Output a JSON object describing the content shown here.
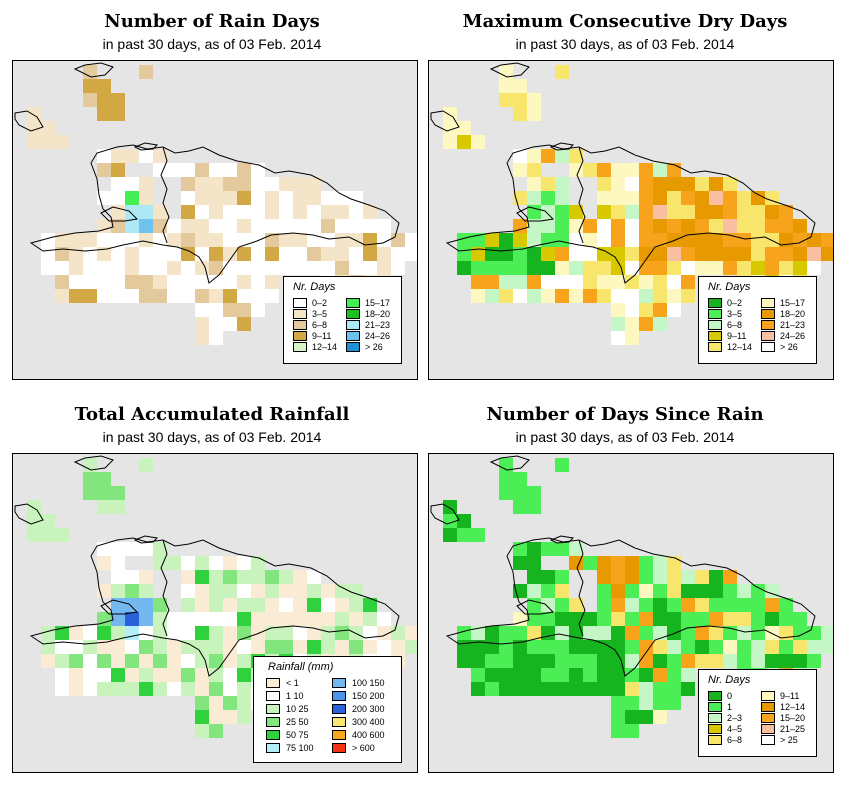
{
  "panels": [
    {
      "title": "Number of Rain Days",
      "subtitle": "in past 30 days, as of  03 Feb. 2014",
      "legend": {
        "title": "Nr. Days",
        "entries": [
          {
            "label": "0–2",
            "color": "#ffffff"
          },
          {
            "label": "3–5",
            "color": "#f4e4c8"
          },
          {
            "label": "6–8",
            "color": "#e3c99b"
          },
          {
            "label": "9–11",
            "color": "#d2a844"
          },
          {
            "label": "12–14",
            "color": "#d7f5c4"
          },
          {
            "label": "15–17",
            "color": "#44ee55"
          },
          {
            "label": "18–20",
            "color": "#1fbf22"
          },
          {
            "label": "21–23",
            "color": "#aee8f5"
          },
          {
            "label": "24–26",
            "color": "#70c2ee"
          },
          {
            "label": "> 26",
            "color": "#1f8fd8"
          }
        ]
      }
    },
    {
      "title": "Maximum Consecutive Dry Days",
      "subtitle": "in past 30 days, as of  03 Feb. 2014",
      "legend": {
        "title": "Nr. Days",
        "entries": [
          {
            "label": "0–2",
            "color": "#16b41e"
          },
          {
            "label": "3–5",
            "color": "#4cee56"
          },
          {
            "label": "6–8",
            "color": "#c5f6c5"
          },
          {
            "label": "9–11",
            "color": "#d8c800"
          },
          {
            "label": "12–14",
            "color": "#f7e56c"
          },
          {
            "label": "15–17",
            "color": "#fdf8c0"
          },
          {
            "label": "18–20",
            "color": "#e79a00"
          },
          {
            "label": "21–23",
            "color": "#f7a41c"
          },
          {
            "label": "24–26",
            "color": "#f8c0a0"
          },
          {
            "label": "> 26",
            "color": "#ffffff"
          }
        ]
      }
    },
    {
      "title": "Total Accumulated Rainfall",
      "subtitle": "in past 30 days, as of  03 Feb. 2014",
      "legend": {
        "title": "Rainfall (mm)",
        "entries": [
          {
            "label": "< 1",
            "color": "#faebd4"
          },
          {
            "label": "1   10",
            "color": "#ffffff"
          },
          {
            "label": "10   25",
            "color": "#c9f3bc"
          },
          {
            "label": "25   50",
            "color": "#82e57e"
          },
          {
            "label": "50   75",
            "color": "#2fd23d"
          },
          {
            "label": "75  100",
            "color": "#b4eef6"
          },
          {
            "label": "100  150",
            "color": "#74b8f0"
          },
          {
            "label": "150  200",
            "color": "#4a93ea"
          },
          {
            "label": "200  300",
            "color": "#2a63d9"
          },
          {
            "label": "300  400",
            "color": "#f8e870"
          },
          {
            "label": "400  600",
            "color": "#f6a820"
          },
          {
            "label": "> 600",
            "color": "#f23214"
          }
        ]
      }
    },
    {
      "title": "Number of Days Since Rain",
      "subtitle": "in past 30 days, as of  03 Feb. 2014",
      "legend": {
        "title": "Nr. Days",
        "entries": [
          {
            "label": "0",
            "color": "#16b41e"
          },
          {
            "label": "1",
            "color": "#4cee56"
          },
          {
            "label": "2–3",
            "color": "#c5f6c5"
          },
          {
            "label": "4–5",
            "color": "#d8c800"
          },
          {
            "label": "6–8",
            "color": "#f7e56c"
          },
          {
            "label": "9–11",
            "color": "#fdf8c0"
          },
          {
            "label": "12–14",
            "color": "#e79a00"
          },
          {
            "label": "15–20",
            "color": "#f7a41c"
          },
          {
            "label": "21–25",
            "color": "#f8c0a0"
          },
          {
            "label": "> 25",
            "color": "#ffffff"
          }
        ]
      }
    }
  ]
}
